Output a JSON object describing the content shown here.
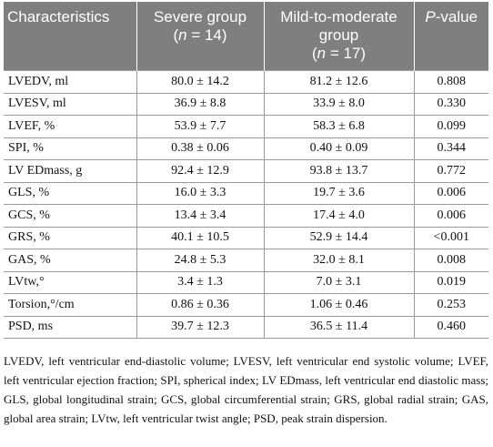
{
  "table": {
    "header": [
      {
        "text": "Characteristics",
        "sub": []
      },
      {
        "text": "Severe group",
        "sub": [
          "(",
          "n",
          " = 14)"
        ]
      },
      {
        "text": "Mild-to-moderate group",
        "sub": [
          "(",
          "n",
          " = 17)"
        ]
      },
      {
        "text": "",
        "sub": [
          "P",
          "-value"
        ]
      }
    ],
    "rows": [
      [
        "LVEDV, ml",
        "80.0 ± 14.2",
        "81.2 ± 12.6",
        "0.808"
      ],
      [
        "LVESV, ml",
        "36.9 ± 8.8",
        "33.9 ± 8.0",
        "0.330"
      ],
      [
        "LVEF, %",
        "53.9 ± 7.7",
        "58.3 ± 6.8",
        "0.099"
      ],
      [
        "SPI, %",
        "0.38 ± 0.06",
        "0.40 ± 0.09",
        "0.344"
      ],
      [
        "LV EDmass, g",
        "92.4 ± 12.9",
        "93.8 ± 13.7",
        "0.772"
      ],
      [
        "GLS, %",
        "16.0 ± 3.3",
        "19.7 ± 3.6",
        "0.006"
      ],
      [
        "GCS, %",
        "13.4 ± 3.4",
        "17.4 ± 4.0",
        "0.006"
      ],
      [
        "GRS, %",
        "40.1 ± 10.5",
        "52.9 ± 14.4",
        "<0.001"
      ],
      [
        "GAS, %",
        "24.8 ± 5.3",
        "32.0 ± 8.1",
        "0.008"
      ],
      [
        "LVtw,°",
        "3.4 ± 1.3",
        "7.0 ± 3.1",
        "0.019"
      ],
      [
        "Torsion,°/cm",
        "0.86 ± 0.36",
        "1.06 ± 0.46",
        "0.253"
      ],
      [
        "PSD, ms",
        "39.7 ± 12.3",
        "36.5 ± 11.4",
        "0.460"
      ]
    ]
  },
  "footnote": "LVEDV, left ventricular end-diastolic volume; LVESV, left ventricular end systolic volume; LVEF, left ventricular ejection fraction; SPI, spherical index; LV EDmass, left ventricular end diastolic mass; GLS, global longitudinal strain; GCS, global circumferential strain; GRS, global radial strain; GAS, global area strain; LVtw, left ventricular twist angle; PSD, peak strain dispersion."
}
